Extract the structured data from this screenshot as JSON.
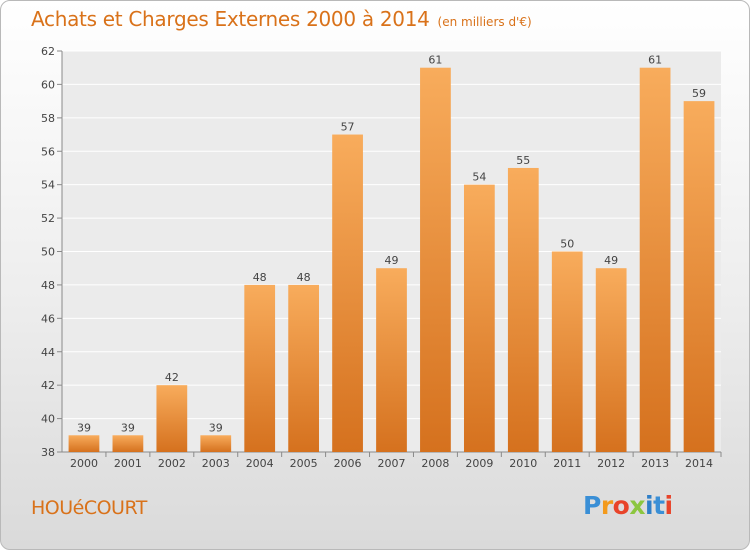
{
  "header": {
    "title": "Achats et Charges Externes 2000 à 2014",
    "subtitle": "(en milliers d'€)"
  },
  "commune": "HOUéCOURT",
  "logo": {
    "letters": [
      "P",
      "r",
      "o",
      "x",
      "i",
      "t",
      "i"
    ]
  },
  "colors": {
    "accent": "#d9721a",
    "bar_light": "#f8ac5c",
    "bar_dark": "#d5711e"
  },
  "chart_data": {
    "type": "bar",
    "title": "Achats et Charges Externes 2000 à 2014",
    "subtitle": "(en milliers d'€)",
    "categories": [
      "2000",
      "2001",
      "2002",
      "2003",
      "2004",
      "2005",
      "2006",
      "2007",
      "2008",
      "2009",
      "2010",
      "2011",
      "2012",
      "2013",
      "2014"
    ],
    "values": [
      39,
      39,
      42,
      39,
      48,
      48,
      57,
      49,
      61,
      54,
      55,
      50,
      49,
      61,
      59
    ],
    "xlabel": "",
    "ylabel": "",
    "ylim": [
      38,
      62
    ],
    "yticks": [
      38,
      40,
      42,
      44,
      46,
      48,
      50,
      52,
      54,
      56,
      58,
      60,
      62
    ],
    "grid": true,
    "data_labels": true
  }
}
